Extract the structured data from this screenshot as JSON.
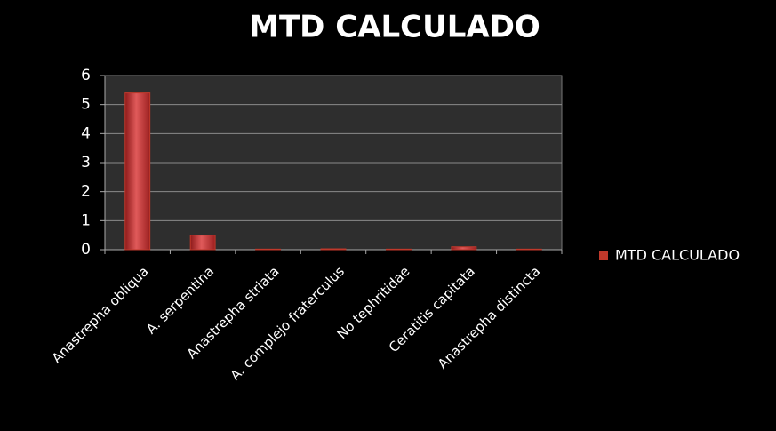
{
  "chart_data": {
    "type": "bar",
    "title": "MTD CALCULADO",
    "categories": [
      "Anastrepha obliqua",
      "A. serpentina",
      "Anastrepha striata",
      "A. complejo fraterculus",
      "No tephritidae",
      "Ceratitis capitata",
      "Anastrepha distincta"
    ],
    "series": [
      {
        "name": "MTD CALCULADO",
        "color": "#c0392b",
        "values": [
          5.4,
          0.5,
          0.02,
          0.03,
          0.02,
          0.1,
          0.02
        ]
      }
    ],
    "ylim": [
      0,
      6
    ],
    "yticks": [
      0,
      1,
      2,
      3,
      4,
      5,
      6
    ],
    "grid": true,
    "legend": "right"
  }
}
